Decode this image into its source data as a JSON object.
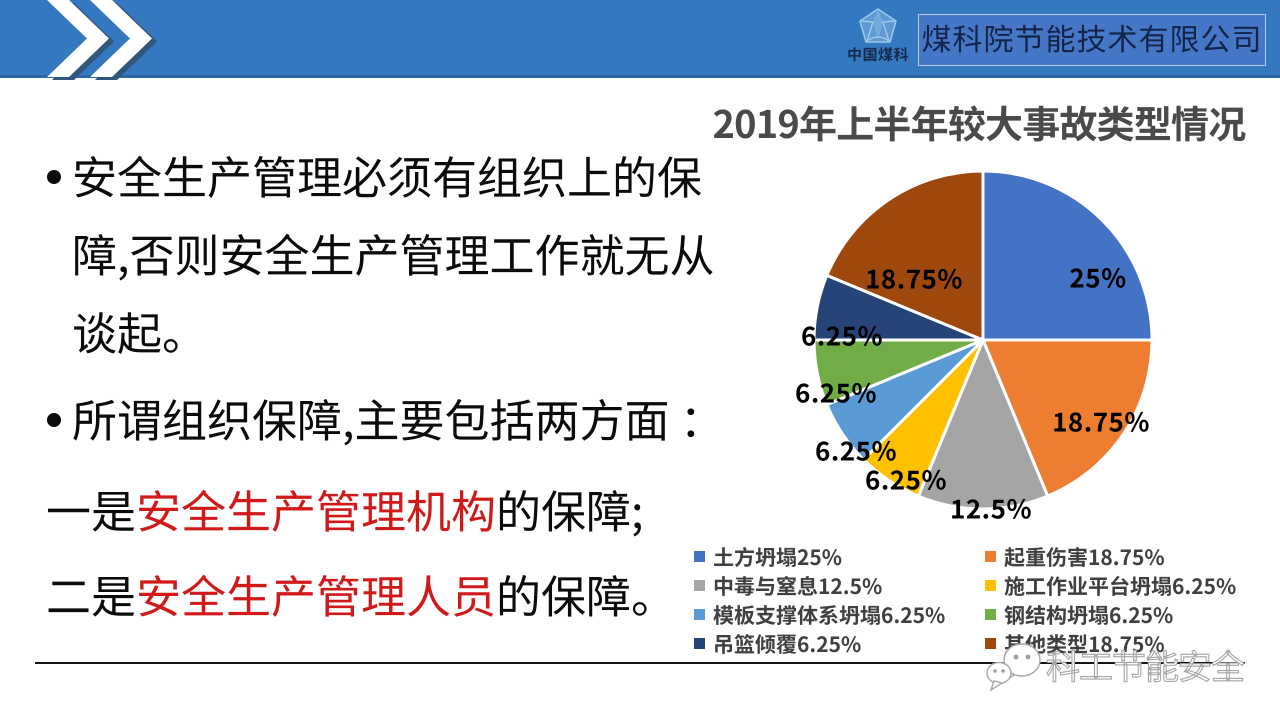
{
  "slide": {
    "header": {
      "logo_text": "中国煤科",
      "company_name": "煤科院节能技术有限公司"
    },
    "bullet_char": "•",
    "body": {
      "p1_l1": "安全生产管理必须有组织上的保",
      "p1_l2": "障,否则安全生产管理工作就无从",
      "p1_l3": "谈起。",
      "p2": "所谓组织保障,主要包括两方面 ：",
      "p3_pre": "一是",
      "p3_red": "安全生产管理机构",
      "p3_post": "的保障;",
      "p4_pre": "二是",
      "p4_red": "安全生产管理人员",
      "p4_post": "的保障。"
    },
    "watermark": {
      "text": "科工节能安全"
    }
  },
  "chart_data": {
    "type": "pie",
    "title": "2019年上半年较大事故类型情况",
    "start_angle_deg": 0,
    "clockwise": true,
    "legend_position": "bottom-two-columns",
    "series": [
      {
        "name": "土方坍塌",
        "value": 25,
        "pct_label": "25%",
        "color": "#4472C4"
      },
      {
        "name": "起重伤害",
        "value": 18.75,
        "pct_label": "18.75%",
        "color": "#ED7D31"
      },
      {
        "name": "中毒与窒息",
        "value": 12.5,
        "pct_label": "12.5%",
        "color": "#A5A5A5"
      },
      {
        "name": "施工作业平台坍塌",
        "value": 6.25,
        "pct_label": "6.25%",
        "color": "#FFC000"
      },
      {
        "name": "模板支撑体系坍塌",
        "value": 6.25,
        "pct_label": "6.25%",
        "color": "#5B9BD5"
      },
      {
        "name": "钢结构坍塌",
        "value": 6.25,
        "pct_label": "6.25%",
        "color": "#70AD47"
      },
      {
        "name": "吊篮倾覆",
        "value": 6.25,
        "pct_label": "6.25%",
        "color": "#264478"
      },
      {
        "name": "其他类型",
        "value": 18.75,
        "pct_label": "18.75%",
        "color": "#9E480E"
      }
    ]
  }
}
